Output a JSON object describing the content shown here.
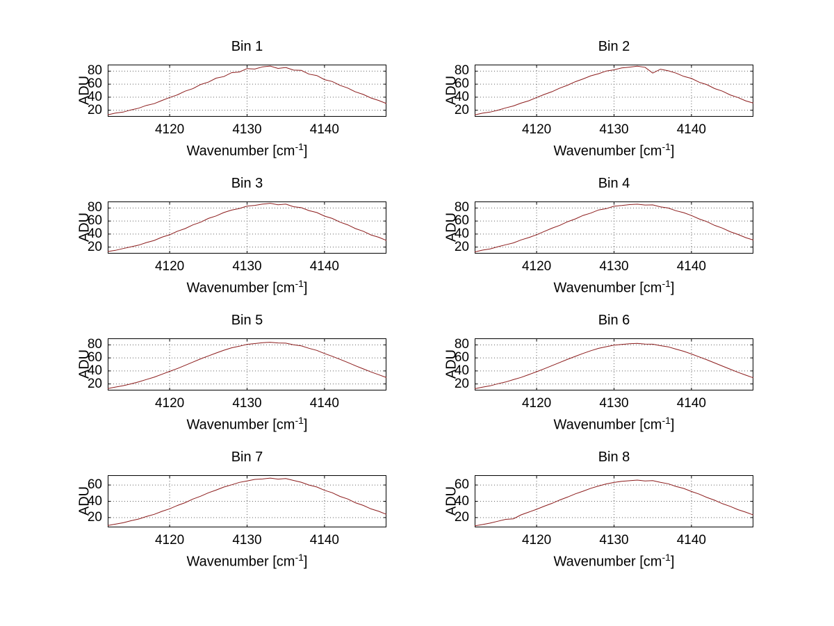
{
  "figure": {
    "background": "#ffffff",
    "line_color": "#8b1a1a",
    "grid_color": "#606060"
  },
  "chart_data": [
    {
      "type": "line",
      "title": "Bin 1",
      "ylabel": "ADU",
      "xlabel": "Wavenumber [cm⁻¹]",
      "xlabel_parts": {
        "prefix": "Wavenumber [cm",
        "sup": "-1",
        "suffix": "]"
      },
      "xlim": [
        4112,
        4148
      ],
      "ylim": [
        10,
        90
      ],
      "xticks": [
        4120,
        4130,
        4140
      ],
      "yticks": [
        20,
        40,
        60,
        80
      ],
      "grid": true,
      "line_color": "#8b1a1a",
      "x_start": 4112,
      "x_step": 1,
      "y": [
        13.0,
        15.6,
        17.1,
        20.5,
        23.1,
        27.4,
        30.1,
        35.0,
        39.6,
        43.6,
        49.3,
        53.1,
        59.5,
        63.1,
        69.2,
        71.7,
        77.6,
        78.7,
        83.9,
        83.2,
        86.6,
        87.8,
        84.1,
        85.6,
        81.6,
        81.2,
        75.4,
        73.3,
        67.0,
        64.1,
        58.2,
        54.1,
        48.2,
        44.2,
        38.8,
        35.0,
        30.3
      ]
    },
    {
      "type": "line",
      "title": "Bin 2",
      "ylabel": "ADU",
      "xlabel": "Wavenumber [cm⁻¹]",
      "xlabel_parts": {
        "prefix": "Wavenumber [cm",
        "sup": "-1",
        "suffix": "]"
      },
      "xlim": [
        4112,
        4148
      ],
      "ylim": [
        10,
        90
      ],
      "xticks": [
        4120,
        4130,
        4140
      ],
      "yticks": [
        20,
        40,
        60,
        80
      ],
      "grid": true,
      "line_color": "#8b1a1a",
      "x_start": 4112,
      "x_step": 1,
      "y": [
        12.8,
        15.4,
        17.2,
        20.0,
        23.6,
        26.5,
        30.9,
        34.5,
        39.5,
        44.2,
        48.5,
        54.0,
        58.4,
        63.8,
        68.0,
        72.8,
        76.0,
        80.2,
        82.0,
        84.9,
        86.2,
        87.5,
        86.0,
        77.0,
        83.0,
        80.5,
        77.0,
        72.0,
        68.8,
        63.0,
        59.2,
        53.2,
        49.3,
        43.5,
        39.6,
        34.4,
        30.9
      ]
    },
    {
      "type": "line",
      "title": "Bin 3",
      "ylabel": "ADU",
      "xlabel": "Wavenumber [cm⁻¹]",
      "xlabel_parts": {
        "prefix": "Wavenumber [cm",
        "sup": "-1",
        "suffix": "]"
      },
      "xlim": [
        4112,
        4148
      ],
      "ylim": [
        10,
        90
      ],
      "xticks": [
        4120,
        4130,
        4140
      ],
      "yticks": [
        20,
        40,
        60,
        80
      ],
      "grid": true,
      "line_color": "#8b1a1a",
      "x_start": 4112,
      "x_step": 1,
      "y": [
        13.2,
        15.0,
        17.8,
        20.4,
        23.0,
        27.0,
        30.2,
        35.2,
        38.9,
        44.3,
        48.4,
        54.1,
        58.2,
        64.0,
        67.8,
        73.0,
        76.8,
        79.2,
        83.0,
        84.0,
        86.0,
        87.2,
        85.0,
        85.9,
        82.0,
        80.5,
        76.0,
        73.0,
        67.6,
        64.0,
        58.3,
        54.2,
        48.4,
        44.4,
        38.7,
        35.1,
        30.2
      ]
    },
    {
      "type": "line",
      "title": "Bin 4",
      "ylabel": "ADU",
      "xlabel": "Wavenumber [cm⁻¹]",
      "xlabel_parts": {
        "prefix": "Wavenumber [cm",
        "sup": "-1",
        "suffix": "]"
      },
      "xlim": [
        4112,
        4148
      ],
      "ylim": [
        10,
        90
      ],
      "xticks": [
        4120,
        4130,
        4140
      ],
      "yticks": [
        20,
        40,
        60,
        80
      ],
      "grid": true,
      "line_color": "#8b1a1a",
      "x_start": 4112,
      "x_step": 1,
      "y": [
        12.6,
        15.3,
        17.3,
        20.6,
        23.5,
        26.4,
        31.0,
        34.6,
        39.0,
        44.0,
        49.0,
        53.4,
        59.0,
        63.2,
        68.6,
        72.2,
        77.0,
        79.0,
        82.8,
        83.8,
        85.2,
        85.8,
        84.6,
        84.8,
        81.8,
        80.0,
        75.8,
        72.8,
        68.4,
        63.2,
        59.0,
        53.3,
        49.1,
        43.6,
        39.4,
        34.5,
        30.8
      ]
    },
    {
      "type": "line",
      "title": "Bin 5",
      "ylabel": "ADU",
      "xlabel": "Wavenumber [cm⁻¹]",
      "xlabel_parts": {
        "prefix": "Wavenumber [cm",
        "sup": "-1",
        "suffix": "]"
      },
      "xlim": [
        4112,
        4148
      ],
      "ylim": [
        10,
        90
      ],
      "xticks": [
        4120,
        4130,
        4140
      ],
      "yticks": [
        20,
        40,
        60,
        80
      ],
      "grid": true,
      "line_color": "#8b1a1a",
      "x_start": 4112,
      "x_step": 1,
      "y": [
        12.9,
        15.2,
        17.4,
        20.1,
        23.2,
        26.9,
        30.4,
        34.9,
        39.3,
        43.7,
        48.6,
        53.5,
        58.5,
        63.0,
        67.5,
        71.8,
        75.5,
        78.0,
        80.8,
        82.0,
        83.4,
        84.0,
        83.0,
        82.6,
        80.2,
        78.5,
        74.8,
        71.5,
        66.8,
        62.5,
        57.8,
        53.0,
        48.0,
        43.2,
        38.5,
        34.2,
        29.8
      ]
    },
    {
      "type": "line",
      "title": "Bin 6",
      "ylabel": "ADU",
      "xlabel": "Wavenumber [cm⁻¹]",
      "xlabel_parts": {
        "prefix": "Wavenumber [cm",
        "sup": "-1",
        "suffix": "]"
      },
      "xlim": [
        4112,
        4148
      ],
      "ylim": [
        10,
        90
      ],
      "xticks": [
        4120,
        4130,
        4140
      ],
      "yticks": [
        20,
        40,
        60,
        80
      ],
      "grid": true,
      "line_color": "#8b1a1a",
      "x_start": 4112,
      "x_step": 1,
      "y": [
        12.7,
        15.0,
        17.2,
        20.3,
        23.0,
        26.6,
        30.1,
        34.4,
        38.8,
        43.4,
        48.2,
        53.0,
        57.9,
        62.4,
        66.9,
        71.0,
        74.6,
        77.2,
        79.6,
        80.6,
        81.8,
        82.2,
        81.2,
        81.0,
        78.8,
        77.0,
        73.5,
        70.2,
        66.0,
        61.5,
        57.0,
        52.2,
        47.4,
        42.6,
        38.0,
        33.6,
        29.4
      ]
    },
    {
      "type": "line",
      "title": "Bin 7",
      "ylabel": "ADU",
      "xlabel": "Wavenumber [cm⁻¹]",
      "xlabel_parts": {
        "prefix": "Wavenumber [cm",
        "sup": "-1",
        "suffix": "]"
      },
      "xlim": [
        4112,
        4148
      ],
      "ylim": [
        8,
        72
      ],
      "xticks": [
        4120,
        4130,
        4140
      ],
      "yticks": [
        20,
        40,
        60
      ],
      "grid": true,
      "line_color": "#8b1a1a",
      "x_start": 4112,
      "x_step": 1,
      "y": [
        10.2,
        11.9,
        13.6,
        16.1,
        18.2,
        21.3,
        24.0,
        27.6,
        30.8,
        34.9,
        38.3,
        42.7,
        46.2,
        50.4,
        53.7,
        57.5,
        60.2,
        63.2,
        64.9,
        66.9,
        67.4,
        68.5,
        67.2,
        67.9,
        65.6,
        63.4,
        60.0,
        57.6,
        53.5,
        50.5,
        46.0,
        42.8,
        38.2,
        35.0,
        30.7,
        27.7,
        24.0
      ]
    },
    {
      "type": "line",
      "title": "Bin 8",
      "ylabel": "ADU",
      "xlabel": "Wavenumber [cm⁻¹]",
      "xlabel_parts": {
        "prefix": "Wavenumber [cm",
        "sup": "-1",
        "suffix": "]"
      },
      "xlim": [
        4112,
        4148
      ],
      "ylim": [
        8,
        72
      ],
      "xticks": [
        4120,
        4130,
        4140
      ],
      "yticks": [
        20,
        40,
        60
      ],
      "grid": true,
      "line_color": "#8b1a1a",
      "x_start": 4112,
      "x_step": 1,
      "y": [
        9.8,
        11.4,
        13.2,
        15.5,
        17.8,
        18.5,
        23.4,
        26.8,
        30.2,
        34.0,
        37.5,
        41.6,
        45.2,
        49.1,
        52.4,
        56.0,
        58.8,
        61.3,
        63.1,
        64.6,
        65.3,
        66.0,
        65.0,
        65.4,
        63.3,
        61.5,
        58.3,
        55.8,
        52.0,
        48.8,
        44.7,
        41.3,
        37.1,
        33.8,
        29.8,
        26.7,
        23.2
      ]
    }
  ]
}
